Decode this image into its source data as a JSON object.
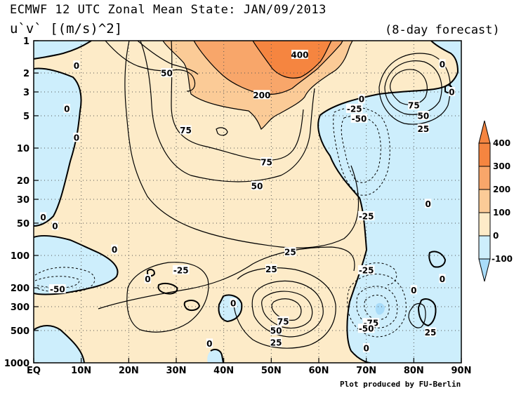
{
  "title": "ECMWF 12 UTC Zonal Mean State: JAN/09/2013",
  "variable_label": "u`v` [(m/s)^2]",
  "forecast_label": "(8-day forecast)",
  "credit": "Plot produced by FU-Berlin",
  "colors": {
    "neg": "#cdeefc",
    "low": "#fdebc8",
    "mid": "#fbcb97",
    "high": "#f8a66a",
    "top": "#f58540"
  },
  "chart_data": {
    "type": "heatmap",
    "x_axis": {
      "range": [
        0,
        90
      ],
      "ticks": [
        {
          "v": 0,
          "label": "EQ"
        },
        {
          "v": 10,
          "label": "10N"
        },
        {
          "v": 20,
          "label": "20N"
        },
        {
          "v": 30,
          "label": "30N"
        },
        {
          "v": 40,
          "label": "40N"
        },
        {
          "v": 50,
          "label": "50N"
        },
        {
          "v": 60,
          "label": "60N"
        },
        {
          "v": 70,
          "label": "70N"
        },
        {
          "v": 80,
          "label": "80N"
        },
        {
          "v": 90,
          "label": "90N"
        }
      ]
    },
    "y_axis": {
      "scale": "log",
      "reversed": true,
      "range": [
        1,
        1000
      ],
      "ticks": [
        {
          "v": 1,
          "label": "1"
        },
        {
          "v": 2,
          "label": "2"
        },
        {
          "v": 3,
          "label": "3"
        },
        {
          "v": 5,
          "label": "5"
        },
        {
          "v": 10,
          "label": "10"
        },
        {
          "v": 20,
          "label": "20"
        },
        {
          "v": 30,
          "label": "30"
        },
        {
          "v": 50,
          "label": "50"
        },
        {
          "v": 100,
          "label": "100"
        },
        {
          "v": 200,
          "label": "200"
        },
        {
          "v": 300,
          "label": "300"
        },
        {
          "v": 500,
          "label": "500"
        },
        {
          "v": 1000,
          "label": "1000"
        }
      ]
    },
    "grid": true,
    "colorbar": {
      "placement": "right",
      "bounds": [
        -100,
        0,
        100,
        200,
        300,
        400
      ],
      "labels": [
        "-100",
        "0",
        "100",
        "200",
        "300",
        "400"
      ]
    },
    "contour_labels": [
      {
        "lat": 56,
        "p": 1.35,
        "text": "400"
      },
      {
        "lat": 48,
        "p": 3.2,
        "text": "200"
      },
      {
        "lat": 28,
        "p": 2.0,
        "text": "50"
      },
      {
        "lat": 9,
        "p": 1.7,
        "text": "0"
      },
      {
        "lat": 7,
        "p": 4.3,
        "text": "0"
      },
      {
        "lat": 9,
        "p": 8.0,
        "text": "0"
      },
      {
        "lat": 32,
        "p": 6.8,
        "text": "75"
      },
      {
        "lat": 49,
        "p": 13.5,
        "text": "75"
      },
      {
        "lat": 47,
        "p": 22.5,
        "text": "50"
      },
      {
        "lat": 69,
        "p": 3.5,
        "text": "0"
      },
      {
        "lat": 67.5,
        "p": 4.3,
        "text": "-25"
      },
      {
        "lat": 68.5,
        "p": 5.3,
        "text": "-50"
      },
      {
        "lat": 80,
        "p": 4.0,
        "text": "75"
      },
      {
        "lat": 82,
        "p": 5.0,
        "text": "50"
      },
      {
        "lat": 82,
        "p": 6.6,
        "text": "25"
      },
      {
        "lat": 88,
        "p": 3.0,
        "text": "0"
      },
      {
        "lat": 86,
        "p": 1.65,
        "text": "0"
      },
      {
        "lat": 2,
        "p": 44,
        "text": "0"
      },
      {
        "lat": 4.5,
        "p": 53,
        "text": "0"
      },
      {
        "lat": 17,
        "p": 88,
        "text": "0"
      },
      {
        "lat": 70,
        "p": 43,
        "text": "-25"
      },
      {
        "lat": 83,
        "p": 33,
        "text": "0"
      },
      {
        "lat": 54,
        "p": 93,
        "text": "25"
      },
      {
        "lat": 50,
        "p": 134,
        "text": "25"
      },
      {
        "lat": 31,
        "p": 137,
        "text": "-25"
      },
      {
        "lat": 24,
        "p": 166,
        "text": "0"
      },
      {
        "lat": 5,
        "p": 206,
        "text": "-50"
      },
      {
        "lat": 70,
        "p": 137,
        "text": "-25"
      },
      {
        "lat": 86,
        "p": 165,
        "text": "0"
      },
      {
        "lat": 80,
        "p": 210,
        "text": "0"
      },
      {
        "lat": 42,
        "p": 278,
        "text": "0"
      },
      {
        "lat": 52.5,
        "p": 410,
        "text": "75"
      },
      {
        "lat": 51,
        "p": 500,
        "text": "50"
      },
      {
        "lat": 51,
        "p": 645,
        "text": "25"
      },
      {
        "lat": 71,
        "p": 425,
        "text": "-75"
      },
      {
        "lat": 70,
        "p": 480,
        "text": "-50"
      },
      {
        "lat": 83.5,
        "p": 520,
        "text": "25"
      },
      {
        "lat": 37,
        "p": 660,
        "text": "0"
      },
      {
        "lat": 70,
        "p": 730,
        "text": "0"
      }
    ]
  }
}
